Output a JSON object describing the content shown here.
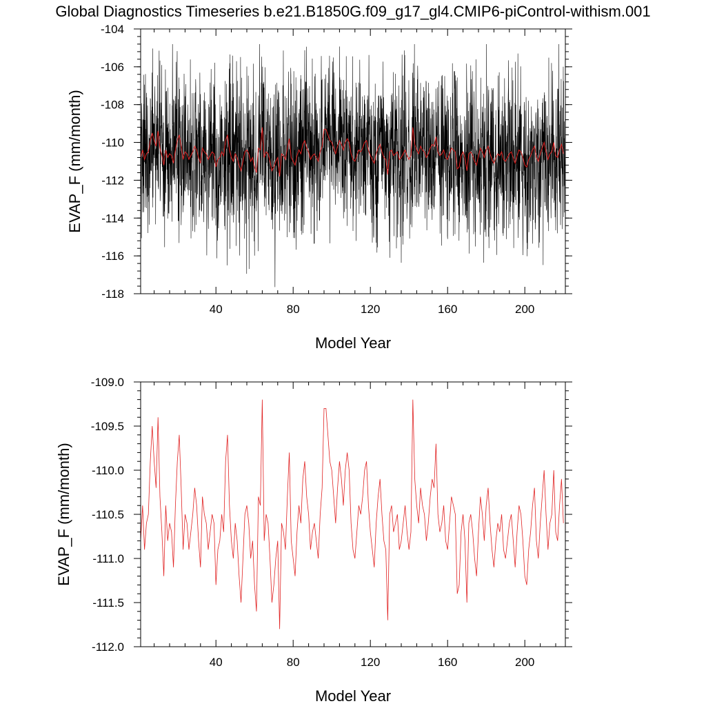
{
  "title": "Global Diagnostics Timeseries b.e21.B1850G.f09_g17_gl4.CMIP6-piControl-withism.001",
  "chart_data": [
    {
      "type": "line",
      "xlabel": "Model Year",
      "ylabel": "EVAP_F (mm/month)",
      "xlim": [
        1,
        221
      ],
      "ylim": [
        -118,
        -104
      ],
      "xticks": [
        40,
        80,
        120,
        160,
        200
      ],
      "xtick_labels": [
        "40",
        "80",
        "120",
        "160",
        "200"
      ],
      "yticks": [
        -118,
        -116,
        -114,
        -112,
        -110,
        -108,
        -106,
        -104
      ],
      "ytick_labels": [
        "-118",
        "-116",
        "-114",
        "-112",
        "-110",
        "-108",
        "-106",
        "-104"
      ],
      "grid": false,
      "series": [
        {
          "color": "#000000",
          "resolution": "monthly",
          "annual_mean": [
            -110.8,
            -110.4,
            -110.9,
            -110.6,
            -110.5,
            -109.9,
            -109.5,
            -109.9,
            -110.2,
            -109.4,
            -110.3,
            -110.7,
            -111.2,
            -110.4,
            -110.8,
            -110.6,
            -110.7,
            -111.1,
            -110.4,
            -109.9,
            -109.6,
            -110.2,
            -110.9,
            -110.5,
            -110.6,
            -110.9,
            -110.7,
            -110.5,
            -110.2,
            -110.4,
            -110.8,
            -111.1,
            -110.3,
            -110.5,
            -110.6,
            -110.9,
            -110.7,
            -110.5,
            -110.6,
            -111.3,
            -110.9,
            -110.8,
            -110.5,
            -110.7,
            -109.9,
            -109.6,
            -110.4,
            -110.8,
            -111.0,
            -110.6,
            -110.8,
            -111.2,
            -111.5,
            -111.0,
            -110.5,
            -110.4,
            -110.6,
            -111.0,
            -110.8,
            -111.3,
            -111.6,
            -110.3,
            -110.4,
            -109.2,
            -110.8,
            -110.5,
            -110.6,
            -111.0,
            -111.5,
            -111.3,
            -111.0,
            -110.8,
            -111.8,
            -110.6,
            -110.7,
            -110.9,
            -110.3,
            -109.8,
            -110.8,
            -111.0,
            -111.2,
            -110.7,
            -110.4,
            -110.6,
            -110.1,
            -109.9,
            -110.3,
            -110.5,
            -110.9,
            -110.7,
            -110.6,
            -110.8,
            -111.0,
            -110.5,
            -110.2,
            -109.3,
            -109.3,
            -109.6,
            -109.9,
            -110.0,
            -110.3,
            -110.6,
            -110.2,
            -109.9,
            -110.1,
            -110.4,
            -110.0,
            -109.8,
            -110.0,
            -110.6,
            -110.9,
            -111.0,
            -110.7,
            -110.4,
            -110.5,
            -110.3,
            -110.0,
            -109.9,
            -110.4,
            -110.7,
            -110.9,
            -111.1,
            -110.6,
            -110.3,
            -110.1,
            -110.5,
            -110.8,
            -110.9,
            -111.7,
            -110.5,
            -110.4,
            -110.7,
            -110.6,
            -110.5,
            -110.9,
            -110.8,
            -110.6,
            -110.4,
            -110.7,
            -110.9,
            -110.7,
            -109.2,
            -110.1,
            -110.4,
            -110.6,
            -110.2,
            -110.4,
            -110.5,
            -110.8,
            -110.6,
            -110.3,
            -110.1,
            -110.2,
            -109.7,
            -110.5,
            -110.7,
            -110.6,
            -110.4,
            -110.8,
            -110.9,
            -110.6,
            -110.3,
            -110.4,
            -110.5,
            -111.4,
            -111.3,
            -110.7,
            -110.5,
            -110.8,
            -111.5,
            -110.6,
            -110.5,
            -110.7,
            -111.0,
            -111.2,
            -110.7,
            -110.3,
            -110.5,
            -110.8,
            -110.4,
            -110.2,
            -110.6,
            -110.9,
            -111.1,
            -110.8,
            -110.6,
            -110.7,
            -110.5,
            -110.9,
            -111.0,
            -110.8,
            -110.6,
            -110.5,
            -110.8,
            -111.1,
            -110.7,
            -110.4,
            -110.5,
            -110.8,
            -111.2,
            -111.3,
            -110.9,
            -110.7,
            -110.4,
            -110.2,
            -110.8,
            -111.0,
            -110.6,
            -110.3,
            -110.0,
            -110.5,
            -110.9,
            -110.6,
            -110.5,
            -110.0,
            -110.7,
            -110.8,
            -110.4,
            -110.1,
            -110.6
          ],
          "min": -117.8,
          "max": -104.8
        },
        {
          "color": "#e02020",
          "resolution": "annual",
          "values_ref": "chart_data.1.values"
        }
      ]
    },
    {
      "type": "line",
      "xlabel": "Model Year",
      "ylabel": "EVAP_F (mm/month)",
      "xlim": [
        1,
        221
      ],
      "ylim": [
        -112.0,
        -109.0
      ],
      "xticks": [
        40,
        80,
        120,
        160,
        200
      ],
      "xtick_labels": [
        "40",
        "80",
        "120",
        "160",
        "200"
      ],
      "yticks": [
        -112.0,
        -111.5,
        -111.0,
        -110.5,
        -110.0,
        -109.5,
        -109.0
      ],
      "ytick_labels": [
        "-112.0",
        "-111.5",
        "-111.0",
        "-110.5",
        "-110.0",
        "-109.5",
        "-109.0"
      ],
      "grid": false,
      "series": [
        {
          "color": "#e02020",
          "x_start": 1,
          "values": [
            -110.8,
            -110.4,
            -110.9,
            -110.6,
            -110.5,
            -109.9,
            -109.5,
            -109.9,
            -110.2,
            -109.4,
            -110.3,
            -110.7,
            -111.2,
            -110.4,
            -110.8,
            -110.6,
            -110.7,
            -111.1,
            -110.4,
            -109.9,
            -109.6,
            -110.2,
            -110.9,
            -110.5,
            -110.6,
            -110.9,
            -110.7,
            -110.5,
            -110.2,
            -110.4,
            -110.8,
            -111.1,
            -110.3,
            -110.5,
            -110.6,
            -110.9,
            -110.7,
            -110.5,
            -110.6,
            -111.3,
            -110.9,
            -110.8,
            -110.5,
            -110.7,
            -109.9,
            -109.6,
            -110.4,
            -110.8,
            -111.0,
            -110.6,
            -110.8,
            -111.2,
            -111.5,
            -111.0,
            -110.5,
            -110.4,
            -110.6,
            -111.0,
            -110.8,
            -111.3,
            -111.6,
            -110.3,
            -110.4,
            -109.2,
            -110.8,
            -110.5,
            -110.6,
            -111.0,
            -111.5,
            -111.3,
            -111.0,
            -110.8,
            -111.8,
            -110.6,
            -110.7,
            -110.9,
            -110.3,
            -109.8,
            -110.8,
            -111.0,
            -111.2,
            -110.7,
            -110.4,
            -110.6,
            -110.1,
            -109.9,
            -110.3,
            -110.5,
            -110.9,
            -110.7,
            -110.6,
            -110.8,
            -111.0,
            -110.5,
            -110.2,
            -109.3,
            -109.3,
            -109.6,
            -109.9,
            -110.0,
            -110.3,
            -110.6,
            -110.2,
            -109.9,
            -110.1,
            -110.4,
            -110.0,
            -109.8,
            -110.0,
            -110.6,
            -110.9,
            -111.0,
            -110.7,
            -110.4,
            -110.5,
            -110.3,
            -110.0,
            -109.9,
            -110.4,
            -110.7,
            -110.9,
            -111.1,
            -110.6,
            -110.3,
            -110.1,
            -110.5,
            -110.8,
            -110.9,
            -111.7,
            -110.5,
            -110.4,
            -110.7,
            -110.6,
            -110.5,
            -110.9,
            -110.8,
            -110.6,
            -110.4,
            -110.7,
            -110.9,
            -110.7,
            -109.2,
            -110.1,
            -110.4,
            -110.6,
            -110.2,
            -110.4,
            -110.5,
            -110.8,
            -110.6,
            -110.3,
            -110.1,
            -110.2,
            -109.7,
            -110.5,
            -110.7,
            -110.6,
            -110.4,
            -110.8,
            -110.9,
            -110.6,
            -110.3,
            -110.4,
            -110.5,
            -111.4,
            -111.3,
            -110.7,
            -110.5,
            -110.8,
            -111.5,
            -110.6,
            -110.5,
            -110.7,
            -111.0,
            -111.2,
            -110.7,
            -110.3,
            -110.5,
            -110.8,
            -110.4,
            -110.2,
            -110.6,
            -110.9,
            -111.1,
            -110.8,
            -110.6,
            -110.7,
            -110.5,
            -110.9,
            -111.0,
            -110.8,
            -110.6,
            -110.5,
            -110.8,
            -111.1,
            -110.7,
            -110.4,
            -110.5,
            -110.8,
            -111.2,
            -111.3,
            -110.9,
            -110.7,
            -110.4,
            -110.2,
            -110.8,
            -111.0,
            -110.6,
            -110.3,
            -110.0,
            -110.5,
            -110.9,
            -110.6,
            -110.5,
            -110.0,
            -110.7,
            -110.8,
            -110.4,
            -110.1,
            -110.6
          ]
        }
      ]
    }
  ]
}
